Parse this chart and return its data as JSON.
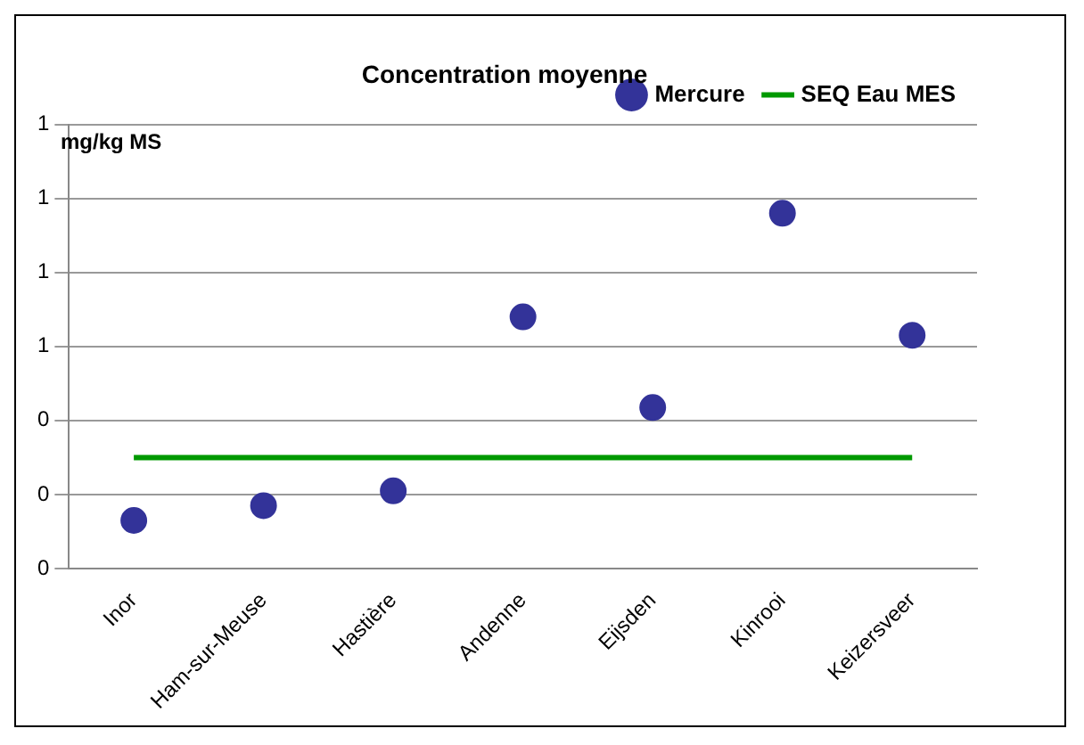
{
  "chart_data": {
    "type": "scatter",
    "title": "Concentration moyenne",
    "ylabel": "mg/kg MS",
    "categories": [
      "Inor",
      "Ham-sur-Meuse",
      "Hastière",
      "Andenne",
      "Eijsden",
      "Kinrooi",
      "Keizersveer"
    ],
    "series": [
      {
        "name": "Mercure",
        "marker": "circle",
        "color": "#333399",
        "values": [
          0.13,
          0.17,
          0.21,
          0.68,
          0.435,
          0.96,
          0.63
        ]
      },
      {
        "name": "SEQ Eau MES",
        "type": "line",
        "color": "#009900",
        "values": [
          0.3,
          0.3,
          0.3,
          0.3,
          0.3,
          0.3,
          0.3
        ]
      }
    ],
    "ylim": [
      0,
      1.2
    ],
    "yticks": [
      0,
      {
        "value": 0.2,
        "label": "0"
      },
      {
        "value": 0.4,
        "label": "0"
      },
      {
        "value": 0.6,
        "label": "1"
      },
      {
        "value": 0.8,
        "label": "1"
      },
      {
        "value": 1.0,
        "label": "1"
      },
      {
        "value": 1.2,
        "label": "1"
      }
    ],
    "grid": "y",
    "legend": "top right"
  }
}
